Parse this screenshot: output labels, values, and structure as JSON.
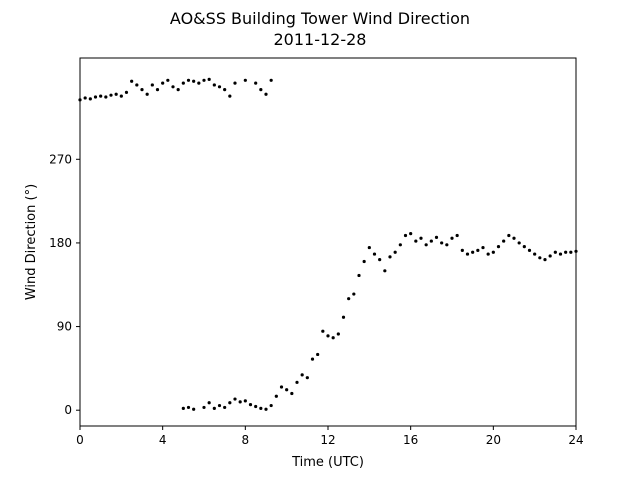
{
  "chart_data": {
    "type": "scatter",
    "title": "AO&SS Building Tower Wind Direction",
    "subtitle": "2011-12-28",
    "xlabel": "Time (UTC)",
    "ylabel": "Wind Direction (°)",
    "xlim": [
      0,
      24
    ],
    "ylim": [
      -17,
      379
    ],
    "xticks": [
      0,
      4,
      8,
      12,
      16,
      20,
      24
    ],
    "yticks": [
      0,
      90,
      180,
      270
    ],
    "grid": false,
    "legend": "none",
    "marker_color": "#000000",
    "series": [
      {
        "values": [
          [
            0.0,
            334
          ],
          [
            0.25,
            336
          ],
          [
            0.5,
            335
          ],
          [
            0.75,
            337
          ],
          [
            1.0,
            338
          ],
          [
            1.25,
            337
          ],
          [
            1.5,
            339
          ],
          [
            1.75,
            340
          ],
          [
            2.0,
            338
          ],
          [
            2.25,
            342
          ],
          [
            2.5,
            354
          ],
          [
            2.75,
            350
          ],
          [
            3.0,
            345
          ],
          [
            3.25,
            340
          ],
          [
            3.5,
            350
          ],
          [
            3.75,
            345
          ],
          [
            4.0,
            352
          ],
          [
            4.25,
            355
          ],
          [
            4.5,
            348
          ],
          [
            4.75,
            345
          ],
          [
            5.0,
            352
          ],
          [
            5.25,
            355
          ],
          [
            5.5,
            354
          ],
          [
            5.75,
            352
          ],
          [
            6.0,
            355
          ],
          [
            6.25,
            356
          ],
          [
            6.5,
            350
          ],
          [
            6.75,
            348
          ],
          [
            7.0,
            345
          ],
          [
            7.25,
            338
          ],
          [
            7.5,
            352
          ],
          [
            8.0,
            355
          ],
          [
            8.5,
            352
          ],
          [
            8.75,
            345
          ],
          [
            9.0,
            340
          ],
          [
            9.25,
            355
          ],
          [
            5.0,
            2
          ],
          [
            5.25,
            3
          ],
          [
            5.5,
            1
          ],
          [
            6.0,
            3
          ],
          [
            6.25,
            8
          ],
          [
            6.5,
            2
          ],
          [
            6.75,
            5
          ],
          [
            7.0,
            3
          ],
          [
            7.25,
            8
          ],
          [
            7.5,
            12
          ],
          [
            7.75,
            9
          ],
          [
            8.0,
            10
          ],
          [
            8.25,
            6
          ],
          [
            8.5,
            4
          ],
          [
            8.75,
            2
          ],
          [
            9.0,
            1
          ],
          [
            9.25,
            5
          ],
          [
            9.5,
            15
          ],
          [
            9.75,
            25
          ],
          [
            10.0,
            22
          ],
          [
            10.25,
            18
          ],
          [
            10.5,
            30
          ],
          [
            10.75,
            38
          ],
          [
            11.0,
            35
          ],
          [
            11.25,
            55
          ],
          [
            11.5,
            60
          ],
          [
            11.75,
            85
          ],
          [
            12.0,
            80
          ],
          [
            12.25,
            78
          ],
          [
            12.5,
            82
          ],
          [
            12.75,
            100
          ],
          [
            13.0,
            120
          ],
          [
            13.25,
            125
          ],
          [
            13.5,
            145
          ],
          [
            13.75,
            160
          ],
          [
            14.0,
            175
          ],
          [
            14.25,
            168
          ],
          [
            14.5,
            162
          ],
          [
            14.75,
            150
          ],
          [
            15.0,
            165
          ],
          [
            15.25,
            170
          ],
          [
            15.5,
            178
          ],
          [
            15.75,
            188
          ],
          [
            16.0,
            190
          ],
          [
            16.25,
            182
          ],
          [
            16.5,
            185
          ],
          [
            16.75,
            178
          ],
          [
            17.0,
            182
          ],
          [
            17.25,
            186
          ],
          [
            17.5,
            180
          ],
          [
            17.75,
            178
          ],
          [
            18.0,
            185
          ],
          [
            18.25,
            188
          ],
          [
            18.5,
            172
          ],
          [
            18.75,
            168
          ],
          [
            19.0,
            170
          ],
          [
            19.25,
            172
          ],
          [
            19.5,
            175
          ],
          [
            19.75,
            168
          ],
          [
            20.0,
            170
          ],
          [
            20.25,
            176
          ],
          [
            20.5,
            182
          ],
          [
            20.75,
            188
          ],
          [
            21.0,
            185
          ],
          [
            21.25,
            180
          ],
          [
            21.5,
            176
          ],
          [
            21.75,
            172
          ],
          [
            22.0,
            168
          ],
          [
            22.25,
            164
          ],
          [
            22.5,
            162
          ],
          [
            22.75,
            166
          ],
          [
            23.0,
            170
          ],
          [
            23.25,
            168
          ],
          [
            23.5,
            170
          ],
          [
            23.75,
            170
          ],
          [
            24.0,
            171
          ]
        ]
      }
    ]
  }
}
